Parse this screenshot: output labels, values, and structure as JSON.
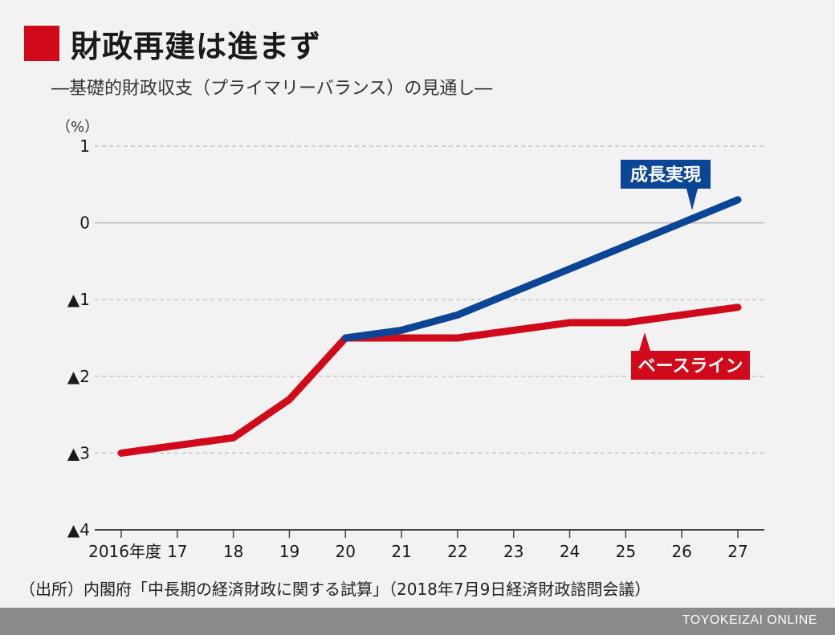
{
  "header": {
    "title": "財政再建は進まず",
    "subtitle": "―基礎的財政収支（プライマリーバランス）の見通し―"
  },
  "chart_data": {
    "type": "line",
    "unit_label": "（%）",
    "categories": [
      "2016年度",
      "17",
      "18",
      "19",
      "20",
      "21",
      "22",
      "23",
      "24",
      "25",
      "26",
      "27"
    ],
    "ylim": [
      -4,
      1
    ],
    "yticks": [
      {
        "value": 1,
        "label": "1"
      },
      {
        "value": 0,
        "label": "0"
      },
      {
        "value": -1,
        "label": "▲1"
      },
      {
        "value": -2,
        "label": "▲2"
      },
      {
        "value": -3,
        "label": "▲3"
      },
      {
        "value": -4,
        "label": "▲4"
      }
    ],
    "grid": true,
    "series": [
      {
        "name": "ベースライン",
        "color": "#d0091b",
        "values": [
          -3.0,
          -2.9,
          -2.8,
          -2.3,
          -1.5,
          -1.5,
          -1.5,
          -1.4,
          -1.3,
          -1.3,
          -1.2,
          -1.1
        ]
      },
      {
        "name": "成長実現",
        "color": "#0b4596",
        "values": [
          null,
          null,
          null,
          null,
          -1.5,
          -1.4,
          -1.2,
          -0.9,
          -0.6,
          -0.3,
          0.0,
          0.3
        ]
      }
    ]
  },
  "footer": {
    "source": "（出所）内閣府「中長期の経済財政に関する試算」（2018年7月9日経済財政諮問会議）",
    "brand": "TOYOKEIZAI ONLINE"
  }
}
